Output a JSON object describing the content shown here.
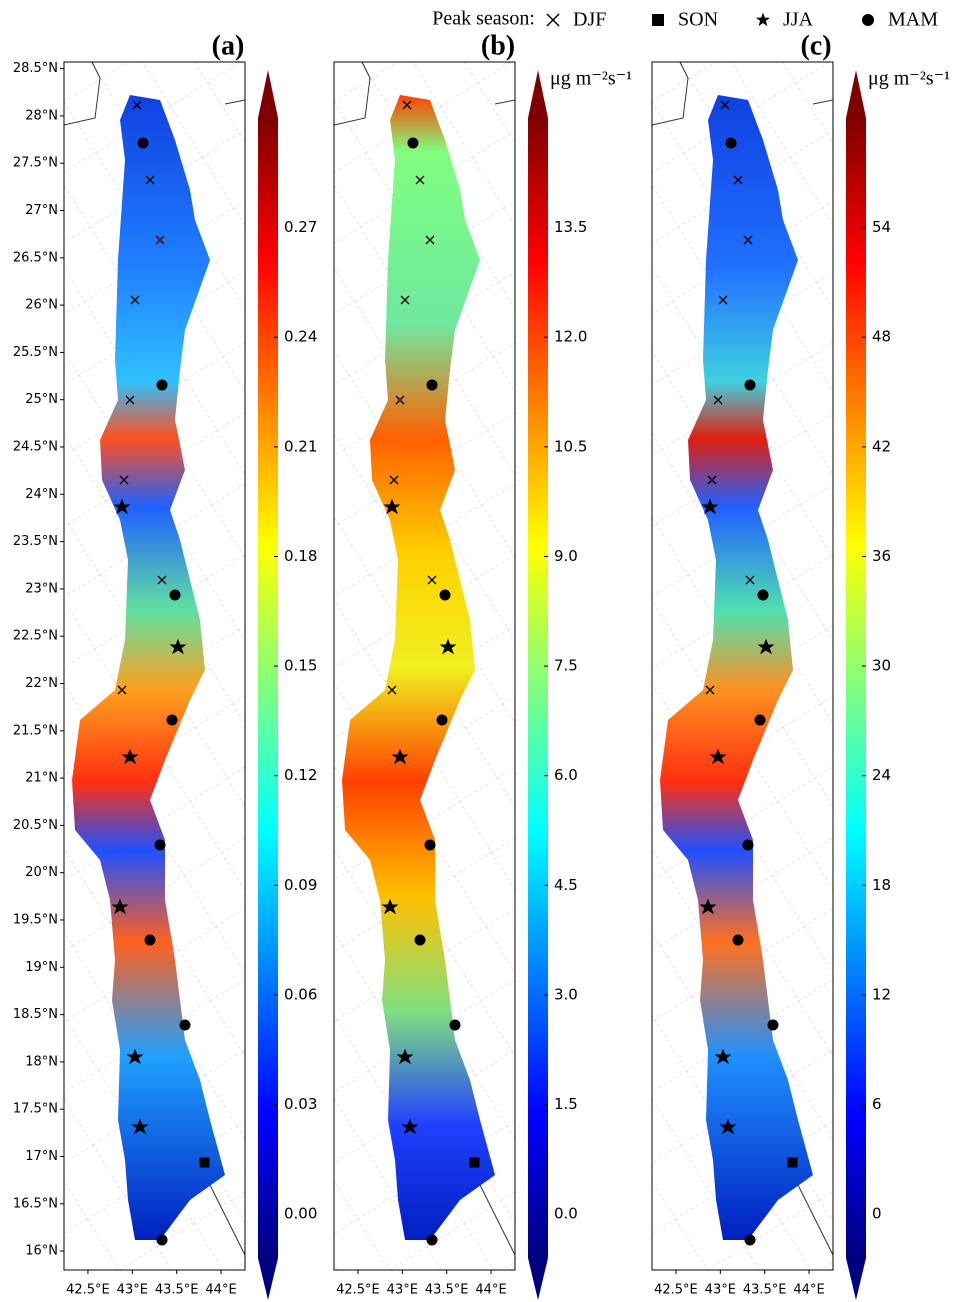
{
  "legend": {
    "title": "Peak season:",
    "items": [
      {
        "label": "DJF",
        "marker": "x"
      },
      {
        "label": "SON",
        "marker": "square"
      },
      {
        "label": "JJA",
        "marker": "star"
      },
      {
        "label": "MAM",
        "marker": "circle"
      }
    ]
  },
  "map": {
    "xlim": [
      42.23,
      44.27
    ],
    "ylim": [
      15.8,
      28.57
    ],
    "xticks": [
      {
        "value": 42.5,
        "label": "42.5°E"
      },
      {
        "value": 43,
        "label": "43°E"
      },
      {
        "value": 43.5,
        "label": "43.5°E"
      },
      {
        "value": 44,
        "label": "44°E"
      }
    ],
    "yticks": [
      {
        "value": 16,
        "label": "16°N"
      },
      {
        "value": 16.5,
        "label": "16.5°N"
      },
      {
        "value": 17,
        "label": "17°N"
      },
      {
        "value": 17.5,
        "label": "17.5°N"
      },
      {
        "value": 18,
        "label": "18°N"
      },
      {
        "value": 18.5,
        "label": "18.5°N"
      },
      {
        "value": 19,
        "label": "19°N"
      },
      {
        "value": 19.5,
        "label": "19.5°N"
      },
      {
        "value": 20,
        "label": "20°N"
      },
      {
        "value": 20.5,
        "label": "20.5°N"
      },
      {
        "value": 21,
        "label": "21°N"
      },
      {
        "value": 21.5,
        "label": "21.5°N"
      },
      {
        "value": 22,
        "label": "22°N"
      },
      {
        "value": 22.5,
        "label": "22.5°N"
      },
      {
        "value": 23,
        "label": "23°N"
      },
      {
        "value": 23.5,
        "label": "23.5°N"
      },
      {
        "value": 24,
        "label": "24°N"
      },
      {
        "value": 24.5,
        "label": "24.5°N"
      },
      {
        "value": 25,
        "label": "25°N"
      },
      {
        "value": 25.5,
        "label": "25.5°N"
      },
      {
        "value": 26,
        "label": "26°N"
      },
      {
        "value": 26.5,
        "label": "26.5°N"
      },
      {
        "value": 27,
        "label": "27°N"
      },
      {
        "value": 27.5,
        "label": "27.5°N"
      },
      {
        "value": 28,
        "label": "28°N"
      },
      {
        "value": 28.5,
        "label": "28.5°N"
      }
    ]
  },
  "panels": [
    {
      "label": "(a)",
      "colorbar": {
        "lim": [
          -0.012,
          0.3
        ],
        "ticks": [
          {
            "value": 0,
            "label": "0.00"
          },
          0.03,
          0.06,
          0.09,
          0.12,
          0.15,
          0.18,
          0.21,
          0.24,
          0.27
        ]
      }
    },
    {
      "label": "(b)",
      "unit": "μg m⁻²s⁻¹",
      "colorbar": {
        "lim": [
          -0.6,
          15
        ],
        "ticks": [
          {
            "value": 0,
            "label": "0.0"
          },
          1.5,
          {
            "value": 3,
            "label": "3.0"
          },
          4.5,
          {
            "value": 6,
            "label": "6.0"
          },
          7.5,
          {
            "value": 9,
            "label": "9.0"
          },
          10.5,
          {
            "value": 12,
            "label": "12.0"
          },
          13.5
        ]
      }
    },
    {
      "label": "(c)",
      "unit": "μg m⁻²s⁻¹",
      "colorbar": {
        "lim": [
          -2.4,
          60
        ],
        "ticks": [
          0,
          6,
          12,
          18,
          24,
          30,
          36,
          42,
          48,
          54
        ]
      }
    }
  ]
}
